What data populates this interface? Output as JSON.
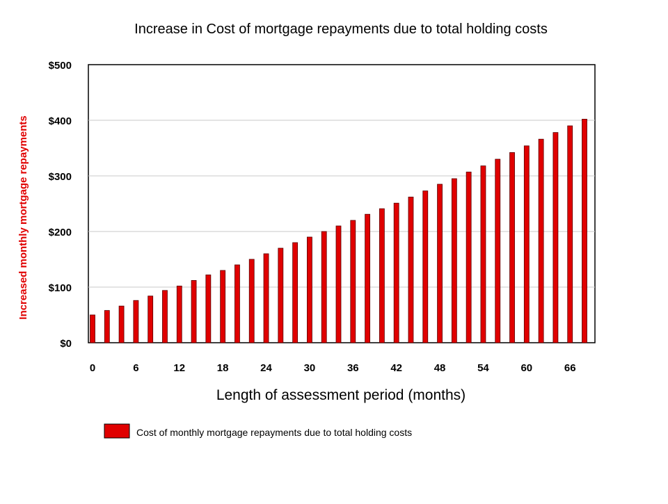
{
  "chart_data": {
    "type": "bar",
    "title": "Increase in Cost of mortgage repayments due to total holding costs",
    "xlabel": "Length of assessment period (months)",
    "ylabel": "Increased monthly mortgage repayments",
    "x_tick_labels": [
      "0",
      "6",
      "12",
      "18",
      "24",
      "30",
      "36",
      "42",
      "48",
      "54",
      "60",
      "66"
    ],
    "y_tick_labels": [
      "$0",
      "$100",
      "$200",
      "$300",
      "$400",
      "$500"
    ],
    "ylim": [
      0,
      500
    ],
    "xlim": [
      0,
      68
    ],
    "grid": true,
    "legend_position": "bottom",
    "x": [
      0,
      2,
      4,
      6,
      8,
      10,
      12,
      14,
      16,
      18,
      20,
      22,
      24,
      26,
      28,
      30,
      32,
      34,
      36,
      38,
      40,
      42,
      44,
      46,
      48,
      50,
      52,
      54,
      56,
      58,
      60,
      62,
      64,
      66,
      68
    ],
    "series": [
      {
        "name": "Cost of monthly mortgage repayments due to total holding costs",
        "color": "#e00000",
        "values": [
          50,
          58,
          66,
          76,
          84,
          94,
          102,
          112,
          122,
          130,
          140,
          150,
          160,
          170,
          180,
          190,
          200,
          210,
          220,
          231,
          241,
          251,
          262,
          273,
          285,
          295,
          307,
          318,
          330,
          342,
          354,
          366,
          378,
          390,
          402
        ]
      }
    ]
  }
}
